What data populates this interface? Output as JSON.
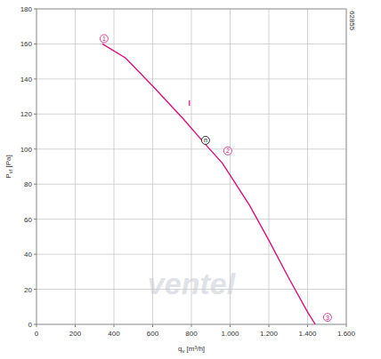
{
  "chart_data": {
    "type": "line",
    "xlabel": {
      "main": "q",
      "sub": "v",
      "unit": " [m³/h]"
    },
    "ylabel": {
      "main": "P",
      "sub": "sf",
      "unit": " [Pa]"
    },
    "code": "62855",
    "watermark": "ventel",
    "x": [
      340,
      460,
      600,
      760,
      870,
      960,
      1100,
      1200,
      1300,
      1400,
      1440
    ],
    "values": [
      160,
      152,
      136,
      117,
      103,
      92,
      68,
      48,
      27,
      7,
      0
    ],
    "color": "#d8117d",
    "xlim": [
      0,
      1600
    ],
    "ylim": [
      0,
      180
    ],
    "xticks": [
      0,
      200,
      400,
      600,
      800,
      {
        "value": 1000,
        "label": "1.000"
      },
      {
        "value": 1200,
        "label": "1.200"
      },
      {
        "value": 1400,
        "label": "1.400"
      },
      {
        "value": 1600,
        "label": "1.600"
      }
    ],
    "yticks": [
      0,
      20,
      40,
      60,
      80,
      100,
      120,
      140,
      160,
      180
    ],
    "grid": true,
    "annotations": [
      {
        "text": "1",
        "x": 349,
        "y": 163,
        "marker": "circle",
        "color": "#d8117d"
      },
      {
        "text": "2",
        "x": 988,
        "y": 99,
        "marker": "circle",
        "color": "#d8117d"
      },
      {
        "text": "3",
        "x": 1503,
        "y": 4,
        "marker": "circle",
        "color": "#d8117d"
      },
      {
        "text": "n",
        "x": 873,
        "y": 105,
        "marker": "circle",
        "color": "#000000"
      },
      {
        "text": "I",
        "x": 790,
        "y": 126,
        "marker": "none",
        "color": "#d8117d"
      }
    ]
  }
}
